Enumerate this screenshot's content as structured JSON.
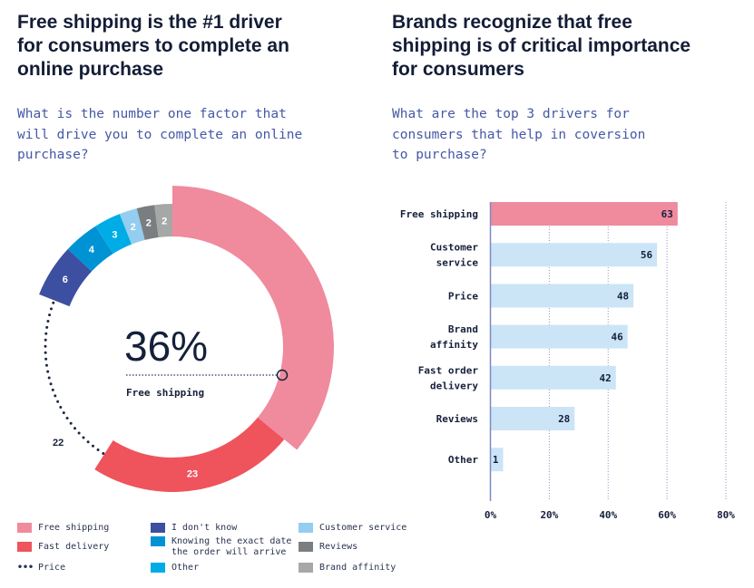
{
  "left": {
    "title": [
      "Free shipping is the #1 driver",
      "for consumers to complete an",
      "online purchase"
    ],
    "question": [
      "What is the number one factor that",
      "will drive you to complete an online",
      "purchase?"
    ]
  },
  "right": {
    "title": [
      "Brands recognize that free",
      "shipping is of critical importance",
      "for consumers"
    ],
    "question": [
      "What are the top 3 drivers for",
      "consumers that help in coversion",
      "to purchase?"
    ]
  },
  "chart_data": [
    {
      "type": "pie",
      "variant": "donut",
      "center_value": "36%",
      "center_label": "Free shipping",
      "slices": [
        {
          "label": "Free shipping",
          "value": 36,
          "color": "#f08a9d",
          "style": "solid"
        },
        {
          "label": "Fast delivery",
          "value": 23,
          "color": "#ef535c",
          "style": "solid"
        },
        {
          "label": "Price",
          "value": 22,
          "color": "#1c2744",
          "style": "dotted"
        },
        {
          "label": "I don't know",
          "value": 6,
          "color": "#3d4fa0",
          "style": "solid"
        },
        {
          "label": "Knowing the exact date the order will arrive",
          "value": 4,
          "color": "#0093d3",
          "style": "solid"
        },
        {
          "label": "Other",
          "value": 3,
          "color": "#00ace6",
          "style": "solid"
        },
        {
          "label": "Customer service",
          "value": 2,
          "color": "#93cdf0",
          "style": "solid"
        },
        {
          "label": "Reviews",
          "value": 2,
          "color": "#7a7e80",
          "style": "solid"
        },
        {
          "label": "Brand affinity",
          "value": 2,
          "color": "#a6a8a8",
          "style": "solid"
        }
      ],
      "legend": [
        [
          "Free shipping",
          "Fast delivery",
          "Price"
        ],
        [
          "I don't know",
          "Knowing the exact date the order will arrive",
          "Other"
        ],
        [
          "Customer service",
          "Reviews",
          "Brand affinity"
        ]
      ],
      "legend_lines": {
        "knowing": [
          "Knowing the exact date",
          "the order will arrive"
        ]
      },
      "legend_placement": "bottom"
    },
    {
      "type": "bar",
      "orientation": "horizontal",
      "categories": [
        [
          "Free shipping"
        ],
        [
          "Customer",
          "service"
        ],
        [
          "Price"
        ],
        [
          "Brand",
          "affinity"
        ],
        [
          "Fast order",
          "delivery"
        ],
        [
          "Reviews"
        ],
        [
          "Other"
        ]
      ],
      "values": [
        63,
        56,
        48,
        46,
        42,
        28,
        1
      ],
      "colors": [
        "#f08a9d",
        "#cbe5f7",
        "#cbe5f7",
        "#cbe5f7",
        "#cbe5f7",
        "#cbe5f7",
        "#cbe5f7"
      ],
      "xlim": [
        0,
        80
      ],
      "xticks": [
        "0%",
        "20%",
        "40%",
        "60%",
        "80%"
      ],
      "grid": "vertical dotted"
    }
  ]
}
